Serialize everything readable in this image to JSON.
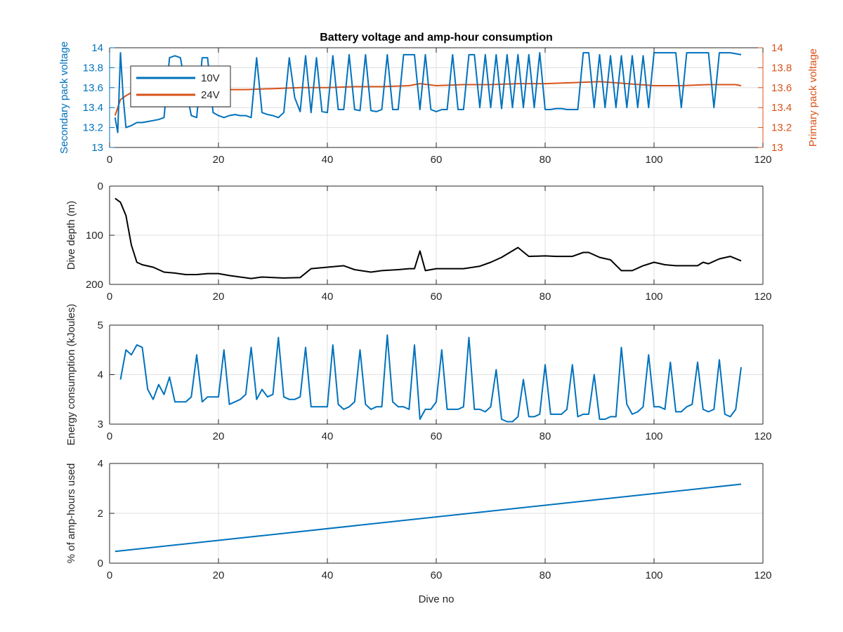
{
  "figure": {
    "title": "Battery voltage and amp-hour consumption",
    "xlabel": "Dive no",
    "colors": {
      "blue": "#0072bd",
      "orange": "#d95319",
      "black": "#000000",
      "grid": "#dfdfdf",
      "axis": "#262626"
    }
  },
  "chart_data": [
    {
      "id": "voltage",
      "type": "line",
      "title": "Battery voltage and amp-hour consumption",
      "xlabel": "",
      "ylabel": "Secondary pack voltage",
      "ylabel_right": "Primary pack voltage",
      "xlim": [
        0,
        120
      ],
      "ylim": [
        13,
        14
      ],
      "ylim_right": [
        13,
        14
      ],
      "xticks": [
        0,
        20,
        40,
        60,
        80,
        100,
        120
      ],
      "yticks": [
        13,
        13.2,
        13.4,
        13.6,
        13.8,
        14
      ],
      "yticks_right": [
        13,
        13.2,
        13.4,
        13.6,
        13.8,
        14
      ],
      "grid": true,
      "legend_position": "top-left",
      "series": [
        {
          "name": "10V",
          "axis": "left",
          "color": "#0072bd",
          "x": [
            1,
            1.5,
            2,
            2.5,
            3,
            4,
            5,
            6,
            7,
            8,
            9,
            10,
            11,
            12,
            13,
            14,
            15,
            16,
            17,
            18,
            19,
            20,
            21,
            22,
            23,
            24,
            25,
            26,
            27,
            28,
            29,
            30,
            31,
            32,
            33,
            34,
            35,
            36,
            37,
            38,
            39,
            40,
            41,
            42,
            43,
            44,
            45,
            46,
            47,
            48,
            49,
            50,
            51,
            52,
            53,
            54,
            55,
            56,
            57,
            58,
            59,
            60,
            61,
            62,
            63,
            64,
            65,
            66,
            67,
            68,
            69,
            70,
            71,
            72,
            73,
            74,
            75,
            76,
            77,
            78,
            79,
            80,
            81,
            82,
            83,
            84,
            85,
            86,
            87,
            88,
            89,
            90,
            91,
            92,
            93,
            94,
            95,
            96,
            97,
            98,
            99,
            100,
            101,
            102,
            103,
            104,
            105,
            106,
            107,
            108,
            109,
            110,
            111,
            112,
            113,
            114,
            115,
            116
          ],
          "values": [
            13.3,
            13.15,
            13.95,
            13.5,
            13.2,
            13.22,
            13.25,
            13.25,
            13.26,
            13.27,
            13.28,
            13.3,
            13.9,
            13.92,
            13.9,
            13.6,
            13.32,
            13.3,
            13.9,
            13.9,
            13.35,
            13.32,
            13.3,
            13.32,
            13.33,
            13.32,
            13.32,
            13.3,
            13.9,
            13.35,
            13.33,
            13.32,
            13.3,
            13.35,
            13.9,
            13.5,
            13.36,
            13.92,
            13.35,
            13.9,
            13.36,
            13.35,
            13.92,
            13.38,
            13.38,
            13.93,
            13.38,
            13.37,
            13.93,
            13.37,
            13.36,
            13.38,
            13.93,
            13.38,
            13.38,
            13.93,
            13.93,
            13.93,
            13.38,
            13.93,
            13.38,
            13.36,
            13.38,
            13.38,
            13.93,
            13.38,
            13.38,
            13.93,
            13.93,
            13.4,
            13.93,
            13.4,
            13.93,
            13.39,
            13.93,
            13.4,
            13.93,
            13.4,
            13.93,
            13.4,
            13.95,
            13.38,
            13.38,
            13.39,
            13.39,
            13.38,
            13.38,
            13.38,
            13.95,
            13.95,
            13.4,
            13.93,
            13.4,
            13.92,
            13.4,
            13.92,
            13.4,
            13.92,
            13.4,
            13.92,
            13.4,
            13.95,
            13.95,
            13.95,
            13.95,
            13.95,
            13.4,
            13.95,
            13.95,
            13.95,
            13.95,
            13.95,
            13.4,
            13.95,
            13.95,
            13.95,
            13.94,
            13.93
          ]
        },
        {
          "name": "24V",
          "axis": "right",
          "color": "#d95319",
          "x": [
            1,
            2,
            3,
            4,
            5,
            6,
            7,
            8,
            10,
            12,
            15,
            20,
            25,
            30,
            35,
            40,
            45,
            50,
            55,
            57,
            60,
            65,
            70,
            75,
            80,
            85,
            90,
            95,
            100,
            105,
            110,
            115,
            116
          ],
          "values": [
            13.32,
            13.48,
            13.52,
            13.55,
            13.56,
            13.57,
            13.57,
            13.57,
            13.57,
            13.58,
            13.58,
            13.58,
            13.58,
            13.59,
            13.6,
            13.6,
            13.61,
            13.61,
            13.62,
            13.64,
            13.62,
            13.63,
            13.63,
            13.64,
            13.64,
            13.65,
            13.66,
            13.64,
            13.62,
            13.62,
            13.63,
            13.63,
            13.62
          ]
        }
      ]
    },
    {
      "id": "depth",
      "type": "line",
      "title": "",
      "xlabel": "",
      "ylabel": "Dive depth (m)",
      "xlim": [
        0,
        120
      ],
      "ylim": [
        0,
        200
      ],
      "y_reversed": true,
      "xticks": [
        0,
        20,
        40,
        60,
        80,
        100,
        120
      ],
      "yticks": [
        0,
        100,
        200
      ],
      "grid": true,
      "series": [
        {
          "color": "#000000",
          "x": [
            1,
            2,
            3,
            4,
            5,
            6,
            8,
            10,
            12,
            14,
            16,
            18,
            20,
            22,
            24,
            26,
            28,
            30,
            32,
            35,
            37,
            40,
            43,
            45,
            48,
            50,
            53,
            55,
            56,
            57,
            58,
            60,
            62,
            65,
            68,
            70,
            72,
            75,
            77,
            80,
            82,
            85,
            87,
            88,
            90,
            92,
            94,
            96,
            98,
            100,
            102,
            104,
            106,
            108,
            109,
            110,
            112,
            114,
            116
          ],
          "values": [
            25,
            33,
            60,
            120,
            155,
            160,
            165,
            175,
            177,
            180,
            180,
            178,
            178,
            182,
            185,
            188,
            185,
            186,
            187,
            186,
            168,
            165,
            162,
            170,
            175,
            172,
            170,
            168,
            168,
            132,
            172,
            168,
            168,
            168,
            163,
            155,
            145,
            125,
            143,
            142,
            143,
            143,
            135,
            135,
            145,
            150,
            172,
            172,
            162,
            155,
            160,
            162,
            162,
            162,
            155,
            158,
            148,
            143,
            152
          ]
        }
      ]
    },
    {
      "id": "energy",
      "type": "line",
      "title": "",
      "xlabel": "",
      "ylabel": "Energy consumption (kJoules)",
      "xlim": [
        0,
        120
      ],
      "ylim": [
        3,
        5
      ],
      "xticks": [
        0,
        20,
        40,
        60,
        80,
        100,
        120
      ],
      "yticks": [
        3,
        4,
        5
      ],
      "grid": true,
      "series": [
        {
          "color": "#0072bd",
          "x": [
            2,
            3,
            4,
            5,
            6,
            7,
            8,
            9,
            10,
            11,
            12,
            13,
            14,
            15,
            16,
            17,
            18,
            19,
            20,
            21,
            22,
            23,
            24,
            25,
            26,
            27,
            28,
            29,
            30,
            31,
            32,
            33,
            34,
            35,
            36,
            37,
            38,
            39,
            40,
            41,
            42,
            43,
            44,
            45,
            46,
            47,
            48,
            49,
            50,
            51,
            52,
            53,
            54,
            55,
            56,
            57,
            58,
            59,
            60,
            61,
            62,
            63,
            64,
            65,
            66,
            67,
            68,
            69,
            70,
            71,
            72,
            73,
            74,
            75,
            76,
            77,
            78,
            79,
            80,
            81,
            82,
            83,
            84,
            85,
            86,
            87,
            88,
            89,
            90,
            91,
            92,
            93,
            94,
            95,
            96,
            97,
            98,
            99,
            100,
            101,
            102,
            103,
            104,
            105,
            106,
            107,
            108,
            109,
            110,
            111,
            112,
            113,
            114,
            115,
            116
          ],
          "values": [
            3.9,
            4.5,
            4.4,
            4.6,
            4.55,
            3.7,
            3.5,
            3.8,
            3.6,
            3.95,
            3.45,
            3.45,
            3.45,
            3.55,
            4.4,
            3.45,
            3.55,
            3.55,
            3.55,
            4.5,
            3.4,
            3.45,
            3.5,
            3.6,
            4.55,
            3.5,
            3.7,
            3.55,
            3.6,
            4.75,
            3.55,
            3.5,
            3.5,
            3.55,
            4.55,
            3.35,
            3.35,
            3.35,
            3.35,
            4.6,
            3.4,
            3.3,
            3.35,
            3.45,
            4.5,
            3.4,
            3.3,
            3.35,
            3.35,
            4.8,
            3.45,
            3.35,
            3.35,
            3.3,
            4.6,
            3.1,
            3.3,
            3.3,
            3.45,
            4.5,
            3.3,
            3.3,
            3.3,
            3.35,
            4.75,
            3.3,
            3.3,
            3.25,
            3.35,
            4.1,
            3.1,
            3.05,
            3.05,
            3.15,
            3.9,
            3.15,
            3.15,
            3.2,
            4.2,
            3.2,
            3.2,
            3.2,
            3.3,
            4.2,
            3.15,
            3.2,
            3.2,
            4.0,
            3.1,
            3.1,
            3.15,
            3.15,
            4.55,
            3.4,
            3.2,
            3.25,
            3.35,
            4.4,
            3.35,
            3.35,
            3.3,
            4.25,
            3.25,
            3.25,
            3.35,
            3.4,
            4.25,
            3.3,
            3.25,
            3.3,
            4.3,
            3.2,
            3.15,
            3.3,
            4.15
          ]
        }
      ]
    },
    {
      "id": "amphours",
      "type": "line",
      "title": "",
      "xlabel": "Dive no",
      "ylabel": "% of amp-hours used",
      "xlim": [
        0,
        120
      ],
      "ylim": [
        0,
        4
      ],
      "xticks": [
        0,
        20,
        40,
        60,
        80,
        100,
        120
      ],
      "yticks": [
        0,
        2,
        4
      ],
      "grid": true,
      "series": [
        {
          "color": "#0072bd",
          "x": [
            1,
            116
          ],
          "values": [
            0.47,
            3.17
          ]
        }
      ]
    }
  ]
}
